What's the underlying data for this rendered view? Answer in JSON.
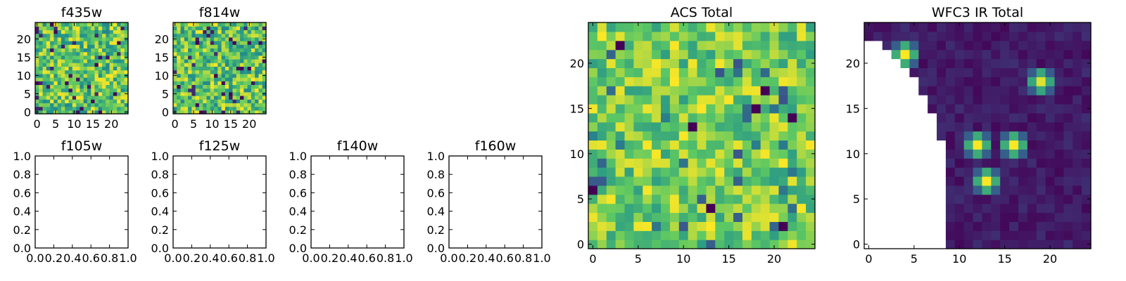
{
  "colormap": [
    "#440154",
    "#3b528b",
    "#21918c",
    "#5ec962",
    "#fde725"
  ],
  "chart_data": [
    {
      "id": "f435w",
      "type": "heatmap",
      "title": "f435w",
      "size": 25,
      "fill": "random-noise",
      "seed": 11,
      "xticks": [
        0,
        5,
        10,
        15,
        20
      ],
      "yticks": [
        0,
        5,
        10,
        15,
        20
      ],
      "xticklabels": [
        "0",
        "5",
        "10",
        "15",
        "20"
      ],
      "yticklabels": [
        "0",
        "5",
        "10",
        "15",
        "20"
      ],
      "show_xticklabels": true
    },
    {
      "id": "f814w",
      "type": "heatmap",
      "title": "f814w",
      "size": 25,
      "fill": "random-noise",
      "seed": 29,
      "xticks": [
        0,
        5,
        10,
        15,
        20
      ],
      "yticks": [
        0,
        5,
        10,
        15,
        20
      ],
      "xticklabels": [
        "0",
        "5",
        "10",
        "15",
        "20"
      ],
      "yticklabels": [
        "0",
        "5",
        "10",
        "15",
        "20"
      ],
      "show_xticklabels": true
    },
    {
      "id": "f105w",
      "type": "empty",
      "title": "f105w",
      "xlim": [
        0,
        1
      ],
      "ylim": [
        0,
        1
      ],
      "xticklabels": [
        "0.0",
        "0.2",
        "0.4",
        "0.6",
        "0.8",
        "1.0"
      ],
      "yticklabels": [
        "0.0",
        "0.2",
        "0.4",
        "0.6",
        "0.8",
        "1.0"
      ],
      "show_yticklabels": true
    },
    {
      "id": "f125w",
      "type": "empty",
      "title": "f125w",
      "xlim": [
        0,
        1
      ],
      "ylim": [
        0,
        1
      ],
      "xticklabels": [
        "0.0",
        "0.2",
        "0.4",
        "0.6",
        "0.8",
        "1.0"
      ],
      "yticklabels": [
        "0.0",
        "0.2",
        "0.4",
        "0.6",
        "0.8",
        "1.0"
      ],
      "show_yticklabels": true
    },
    {
      "id": "f140w",
      "type": "empty",
      "title": "f140w",
      "xlim": [
        0,
        1
      ],
      "ylim": [
        0,
        1
      ],
      "xticklabels": [
        "0.0",
        "0.2",
        "0.4",
        "0.6",
        "0.8",
        "1.0"
      ],
      "yticklabels": [
        "0.0",
        "0.2",
        "0.4",
        "0.6",
        "0.8",
        "1.0"
      ],
      "show_yticklabels": true
    },
    {
      "id": "f160w",
      "type": "empty",
      "title": "f160w",
      "xlim": [
        0,
        1
      ],
      "ylim": [
        0,
        1
      ],
      "xticklabels": [
        "0.0",
        "0.2",
        "0.4",
        "0.6",
        "0.8",
        "1.0"
      ],
      "yticklabels": [
        "0.0",
        "0.2",
        "0.4",
        "0.6",
        "0.8",
        "1.0"
      ],
      "show_yticklabels": true
    },
    {
      "id": "acs-total",
      "type": "heatmap",
      "title": "ACS Total",
      "size": 25,
      "fill": "random-noise-bright",
      "seed": 53,
      "xticks": [
        0,
        5,
        10,
        15,
        20
      ],
      "yticks": [
        0,
        5,
        10,
        15,
        20
      ],
      "xticklabels": [
        "0",
        "5",
        "10",
        "15",
        "20"
      ],
      "yticklabels": [
        "0",
        "5",
        "10",
        "15",
        "20"
      ],
      "show_xticklabels": true
    },
    {
      "id": "wfc3-ir-total",
      "type": "heatmap",
      "title": "WFC3 IR Total",
      "size": 25,
      "fill": "dark-with-sources",
      "seed": 71,
      "xticks": [
        0,
        5,
        10,
        15,
        20
      ],
      "yticks": [
        0,
        5,
        10,
        15,
        20
      ],
      "xticklabels": [
        "0",
        "5",
        "10",
        "15",
        "20"
      ],
      "yticklabels": [
        "0",
        "5",
        "10",
        "15",
        "20"
      ],
      "show_xticklabels": true,
      "sources": [
        [
          4,
          21,
          1.0
        ],
        [
          12,
          11,
          1.0
        ],
        [
          16,
          11,
          1.0
        ],
        [
          13,
          7,
          1.0
        ],
        [
          19,
          18,
          0.95
        ]
      ],
      "masked_region": "lower-left triangle",
      "masked_edge": [
        [
          0,
          23
        ],
        [
          4,
          20
        ],
        [
          7,
          15
        ],
        [
          9,
          9
        ],
        [
          9,
          0
        ]
      ]
    }
  ]
}
